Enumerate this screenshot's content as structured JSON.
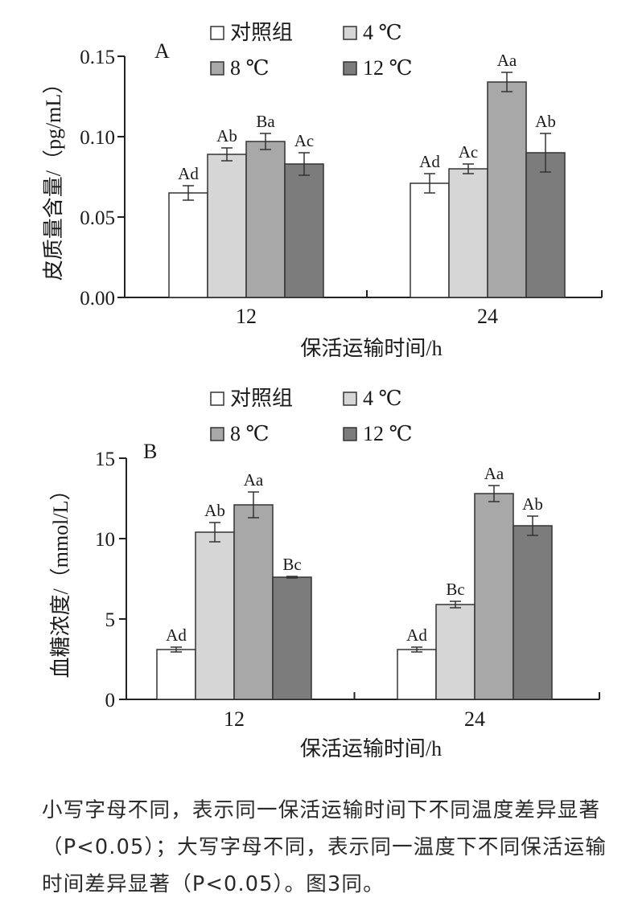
{
  "chart_data": [
    {
      "type": "bar",
      "panel_label": "A",
      "categories": [
        "12",
        "24"
      ],
      "series": [
        {
          "name": "对照组",
          "color": "#ffffff",
          "values": [
            0.065,
            0.071
          ],
          "errors": [
            0.0045,
            0.006
          ],
          "labels": [
            "Ad",
            "Ad"
          ]
        },
        {
          "name": "4 ℃",
          "color": "#d6d6d6",
          "values": [
            0.089,
            0.08
          ],
          "errors": [
            0.004,
            0.003
          ],
          "labels": [
            "Ab",
            "Ac"
          ]
        },
        {
          "name": "8 ℃",
          "color": "#a8a8a8",
          "values": [
            0.097,
            0.134
          ],
          "errors": [
            0.005,
            0.006
          ],
          "labels": [
            "Ba",
            "Aa"
          ]
        },
        {
          "name": "12 ℃",
          "color": "#7c7c7c",
          "values": [
            0.083,
            0.09
          ],
          "errors": [
            0.007,
            0.012
          ],
          "labels": [
            "Ac",
            "Ab"
          ]
        }
      ],
      "xlabel": "保活运输时间/h",
      "ylabel": "皮质量含量/（pg/mL）",
      "ylim": [
        0,
        0.15
      ],
      "yticks": [
        "0.00",
        "0.05",
        "0.10",
        "0.15"
      ],
      "legend_position": "top"
    },
    {
      "type": "bar",
      "panel_label": "B",
      "categories": [
        "12",
        "24"
      ],
      "series": [
        {
          "name": "对照组",
          "color": "#ffffff",
          "values": [
            3.1,
            3.1
          ],
          "errors": [
            0.15,
            0.15
          ],
          "labels": [
            "Ad",
            "Ad"
          ]
        },
        {
          "name": "4 ℃",
          "color": "#d6d6d6",
          "values": [
            10.4,
            5.9
          ],
          "errors": [
            0.6,
            0.2
          ],
          "labels": [
            "Ab",
            "Bc"
          ]
        },
        {
          "name": "8 ℃",
          "color": "#a8a8a8",
          "values": [
            12.1,
            12.8
          ],
          "errors": [
            0.8,
            0.5
          ],
          "labels": [
            "Aa",
            "Aa"
          ]
        },
        {
          "name": "12 ℃",
          "color": "#7c7c7c",
          "values": [
            7.6,
            10.8
          ],
          "errors": [
            0.05,
            0.6
          ],
          "labels": [
            "Bc",
            "Ab"
          ]
        }
      ],
      "xlabel": "保活运输时间/h",
      "ylabel": "血糖浓度/（mmol/L）",
      "ylim": [
        0,
        15
      ],
      "yticks": [
        "0",
        "5",
        "10",
        "15"
      ],
      "legend_position": "top"
    }
  ],
  "caption": "小写字母不同，表示同一保活运输时间下不同温度差异显著（P<0.05）；大写字母不同，表示同一温度下不同保活运输时间差异显著（P<0.05）。图3同。"
}
